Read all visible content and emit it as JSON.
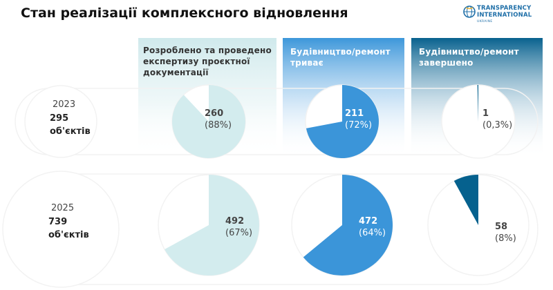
{
  "page": {
    "title": "Стан реалізації комплексного відновлення",
    "logo": {
      "lines": [
        "TRANSPARENCY",
        "INTERNATIONAL"
      ],
      "sub": "UKRAINE",
      "icon": "globe-icon"
    }
  },
  "colors": {
    "column_1": "#d3ecee",
    "column_2": "#3b95d9",
    "column_3": "#05618e",
    "pie_background": "#ffffff",
    "outline": "#f2f2f2"
  },
  "chart_data": {
    "type": "pie",
    "title": "Стан реалізації комплексного відновлення",
    "categories": [
      "Розроблено та проведено експертизу проєктної документації",
      "Будівництво/ремонт триває",
      "Будівництво/ремонт завершено"
    ],
    "columns": [
      {
        "lines": [
          "Розроблено та проведено",
          "експертизу проєктної",
          "документації"
        ]
      },
      {
        "lines": [
          "Будівництво/ремонт",
          "триває"
        ]
      },
      {
        "lines": [
          "Будівництво/ремонт",
          "завершено"
        ]
      }
    ],
    "series": [
      {
        "year": "2023",
        "total_number": "295",
        "total_unit": "об'єктів",
        "values": [
          260,
          211,
          1
        ],
        "percent_labels": [
          "(88%)",
          "(72%)",
          "(0,3%)"
        ],
        "shares": [
          0.88,
          0.72,
          0.003
        ]
      },
      {
        "year": "2025",
        "total_number": "739",
        "total_unit": "об'єктів",
        "values": [
          492,
          472,
          58
        ],
        "percent_labels": [
          "(67%)",
          "(64%)",
          "(8%)"
        ],
        "shares": [
          0.67,
          0.64,
          0.08
        ]
      }
    ]
  }
}
